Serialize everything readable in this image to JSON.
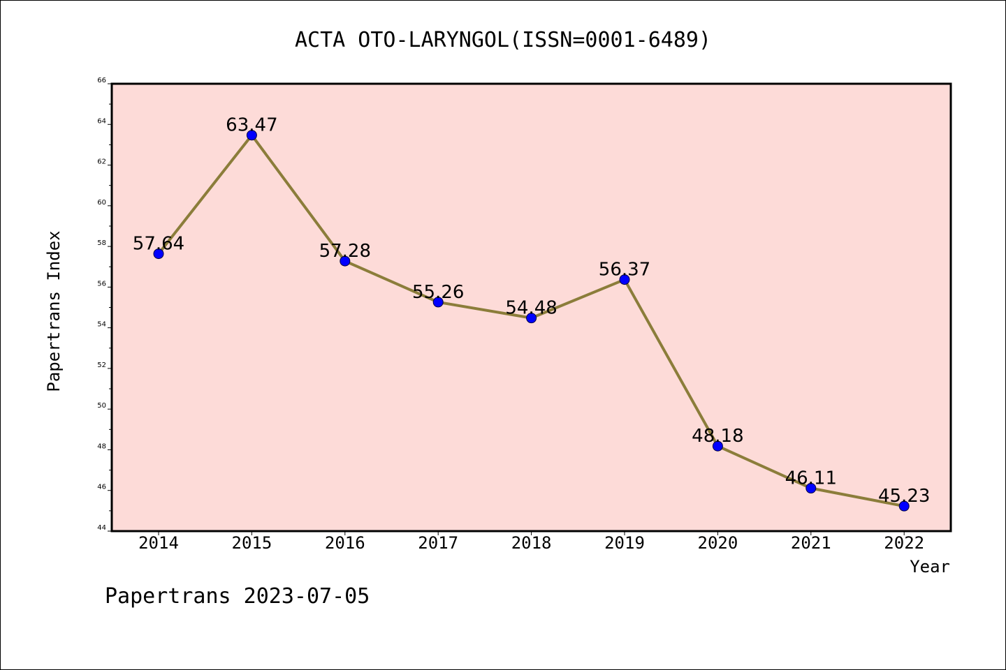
{
  "chart_data": {
    "type": "line",
    "title": "ACTA OTO-LARYNGOL(ISSN=0001-6489)",
    "xlabel": "Year",
    "ylabel": "Papertrans Index",
    "categories": [
      "2014",
      "2015",
      "2016",
      "2017",
      "2018",
      "2019",
      "2020",
      "2021",
      "2022"
    ],
    "series": [
      {
        "values": [
          57.64,
          63.47,
          57.28,
          55.26,
          54.48,
          56.37,
          48.18,
          46.11,
          45.23
        ],
        "labels": [
          "57.64",
          "63.47",
          "57.28",
          "55.26",
          "54.48",
          "56.37",
          "48.18",
          "46.11",
          "45.23"
        ],
        "line_color": "#8b7d3a",
        "marker_color": "#0000ff"
      }
    ],
    "ylim": [
      44,
      66
    ],
    "yticks": [
      "44",
      "46",
      "48",
      "50",
      "52",
      "54",
      "56",
      "58",
      "60",
      "62",
      "64",
      "66"
    ],
    "plot_background": "#fddbd8",
    "grid": false,
    "legend": "none"
  },
  "footer": "Papertrans 2023-07-05"
}
